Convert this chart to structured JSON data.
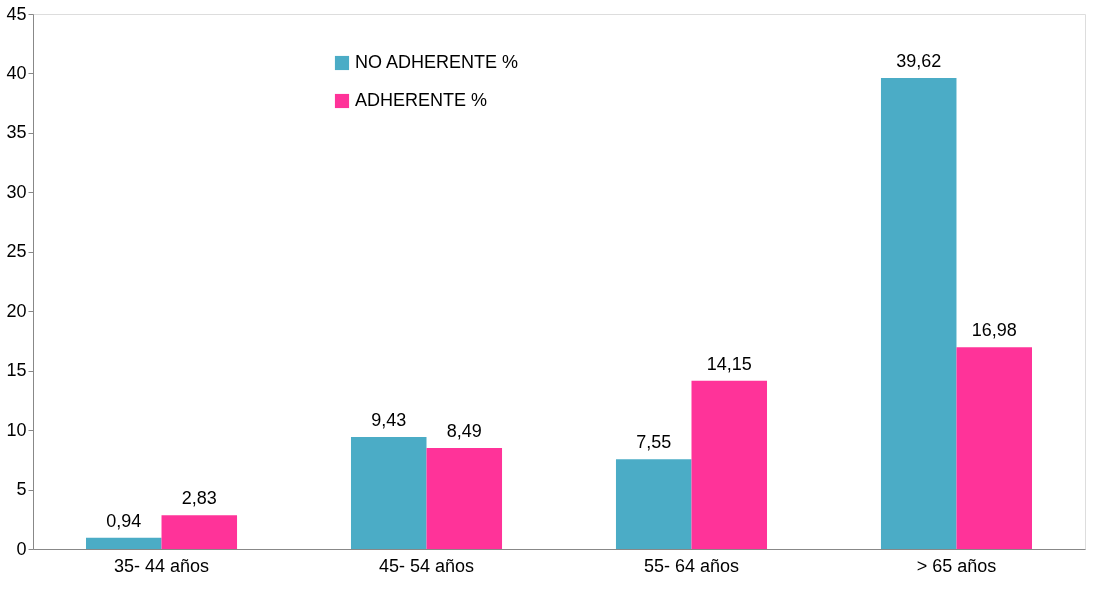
{
  "chart_data": {
    "type": "bar",
    "categories": [
      "35- 44 años",
      "45- 54 años",
      "55- 64 años",
      "> 65 años"
    ],
    "series": [
      {
        "name": "NO ADHERENTE %",
        "color": "#4bacc6",
        "values": [
          0.94,
          9.43,
          7.55,
          39.62
        ],
        "value_labels": [
          "0,94",
          "9,43",
          "7,55",
          "39,62"
        ]
      },
      {
        "name": "ADHERENTE %",
        "color": "#ff3399",
        "values": [
          2.83,
          8.49,
          14.15,
          16.98
        ],
        "value_labels": [
          "2,83",
          "8,49",
          "14,15",
          "16,98"
        ]
      }
    ],
    "ylim": [
      0,
      45
    ],
    "yticks": [
      0,
      5,
      10,
      15,
      20,
      25,
      30,
      35,
      40,
      45
    ],
    "grid": false,
    "legend": "top"
  }
}
